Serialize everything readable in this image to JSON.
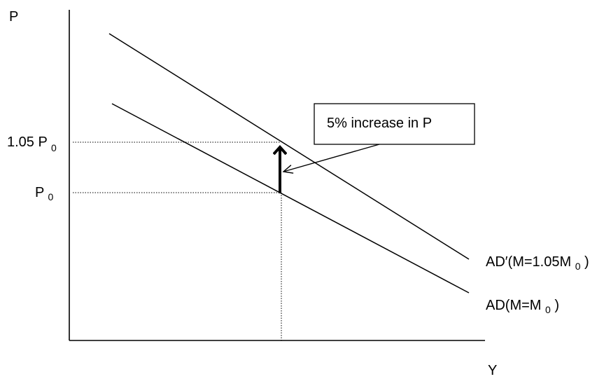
{
  "axes": {
    "y_label": "P",
    "x_label": "Y"
  },
  "price_levels": {
    "high": {
      "main": "1.05 P",
      "sub": "0"
    },
    "base": {
      "main": "P",
      "sub": "0"
    }
  },
  "curves": {
    "ad_shifted": {
      "prefix": "AD′(M=1.05M",
      "sub": "0",
      "suffix": ")"
    },
    "ad_original": {
      "prefix": "AD(M=M",
      "sub": "0",
      "suffix": ")"
    }
  },
  "callout": {
    "text": "5% increase in P"
  }
}
